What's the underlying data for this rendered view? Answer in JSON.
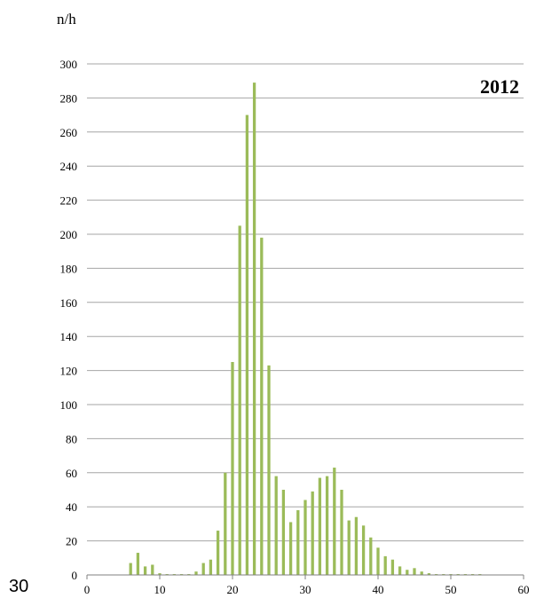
{
  "corner_label": "30",
  "chart_data": {
    "type": "bar",
    "title": "2012",
    "ylabel": "n/h",
    "xlabel": "",
    "xlim": [
      0,
      60
    ],
    "ylim": [
      0,
      300
    ],
    "x_ticks": [
      0,
      10,
      20,
      30,
      40,
      50,
      60
    ],
    "y_ticks": [
      0,
      20,
      40,
      60,
      80,
      100,
      120,
      140,
      160,
      180,
      200,
      220,
      240,
      260,
      280,
      300
    ],
    "grid": "horizontal",
    "legend": "none",
    "colors": {
      "bar": "#9bbb59",
      "grid": "#a6a6a6",
      "axis": "#808080"
    },
    "x": [
      6,
      7,
      8,
      9,
      10,
      11,
      12,
      13,
      14,
      15,
      16,
      17,
      18,
      19,
      20,
      21,
      22,
      23,
      24,
      25,
      26,
      27,
      28,
      29,
      30,
      31,
      32,
      33,
      34,
      35,
      36,
      37,
      38,
      39,
      40,
      41,
      42,
      43,
      44,
      45,
      46,
      47,
      48,
      49,
      50,
      51,
      52,
      53,
      54
    ],
    "values": [
      7,
      13,
      5,
      6,
      1,
      0.5,
      0.5,
      0.5,
      0.5,
      2,
      7,
      9,
      26,
      60,
      125,
      205,
      270,
      289,
      198,
      123,
      58,
      50,
      31,
      38,
      44,
      49,
      57,
      58,
      63,
      50,
      32,
      34,
      29,
      22,
      16,
      11,
      9,
      5,
      3,
      4,
      2,
      1,
      0.5,
      0.5,
      0.5,
      0.5,
      0.5,
      0.5,
      0.5
    ]
  }
}
